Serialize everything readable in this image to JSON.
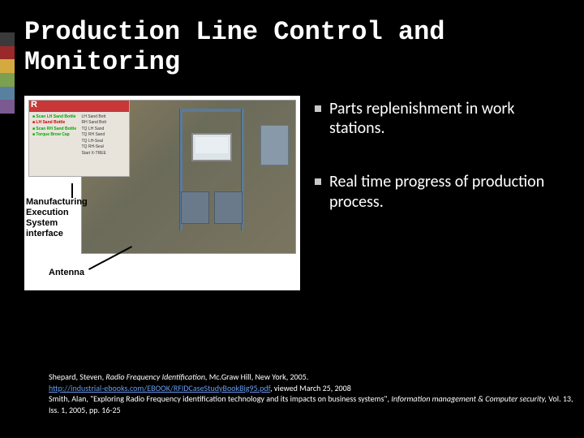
{
  "accent_colors": [
    "#3a3a3a",
    "#9a2a2a",
    "#d4aa40",
    "#7aa050",
    "#5a80a0",
    "#7a5a90"
  ],
  "title": "Production Line Control and Monitoring",
  "bullets": [
    "Parts replenishment in work stations.",
    "Real time progress of production process."
  ],
  "figure": {
    "callout_mes_l1": "Manufacturing",
    "callout_mes_l2": "Execution",
    "callout_mes_l3": "System",
    "callout_mes_l4": "interface",
    "callout_antenna": "Antenna",
    "mes_left": [
      "■ Scan LH Sand Bottle",
      "■ LH Sand Bottle",
      "■ Scan RH Sand Bottle",
      "■ Torque Brow Cap"
    ],
    "mes_right": [
      "LH Sand Bott",
      "RH Sand Bott",
      "TQ LH Sand",
      "TQ RH Sand",
      "TQ LH-Seal",
      "TQ RH-Seal",
      "Start X-TREE"
    ]
  },
  "refs": {
    "r1_a": "Shepard, Steven, ",
    "r1_b": "Radio Frequency Identification,",
    "r1_c": " Mc.Graw Hill, New York, 2005.",
    "r2_link": "http://industrial-ebooks.com/EBOOK/RFIDCaseStudyBookBig95.pdf",
    "r2_tail": ", viewed March 25, 2008",
    "r3_a": "Smith, Alan, \"Exploring Radio Frequency identification technology and its impacts on business systems\", ",
    "r3_b": "Information management & Computer security,",
    "r3_c": " Vol. 13, Iss. 1, 2005, pp. 16-25"
  }
}
